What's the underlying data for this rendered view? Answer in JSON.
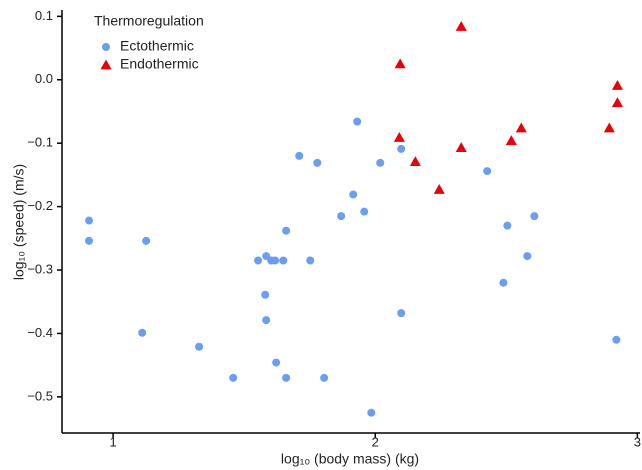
{
  "chart_data": {
    "type": "scatter",
    "xlabel": "log₁₀ (body mass) (kg)",
    "ylabel": "log₁₀ (speed)  (m/s)",
    "legend_title": "Thermoregulation",
    "legend": "top-left",
    "grid": false,
    "xlim": [
      0.805,
      3.01
    ],
    "ylim": [
      -0.557,
      0.11
    ],
    "xticks": [
      1,
      2,
      3
    ],
    "yticks": [
      {
        "value": 0.1,
        "label": "0.1"
      },
      {
        "value": 0,
        "label": "0.0"
      },
      {
        "value": -0.1,
        "label": "−0.1"
      },
      {
        "value": -0.2,
        "label": "−0.2"
      },
      {
        "value": -0.3,
        "label": "−0.3"
      },
      {
        "value": -0.4,
        "label": "−0.4"
      },
      {
        "value": -0.5,
        "label": "−0.5"
      }
    ],
    "series": [
      {
        "name": "Ectothermic",
        "color": "#6b9ef0",
        "marker": "circle",
        "x": [
          0.908,
          0.908,
          1.126,
          1.111,
          1.328,
          1.458,
          1.553,
          1.584,
          1.603,
          1.618,
          1.649,
          1.66,
          1.58,
          1.584,
          1.622,
          1.66,
          1.71,
          1.752,
          1.779,
          1.805,
          1.87,
          1.916,
          1.931,
          1.958,
          1.985,
          2.019,
          2.099,
          2.099,
          2.427,
          2.504,
          2.489,
          2.58,
          2.607,
          2.92
        ],
        "values": [
          -0.222,
          -0.254,
          -0.254,
          -0.399,
          -0.421,
          -0.47,
          -0.285,
          -0.278,
          -0.285,
          -0.285,
          -0.285,
          -0.238,
          -0.339,
          -0.379,
          -0.446,
          -0.47,
          -0.12,
          -0.285,
          -0.131,
          -0.47,
          -0.215,
          -0.181,
          -0.066,
          -0.208,
          -0.525,
          -0.131,
          -0.109,
          -0.368,
          -0.144,
          -0.23,
          -0.32,
          -0.278,
          -0.215,
          -0.41
        ]
      },
      {
        "name": "Endothermic",
        "color": "#e8000b",
        "marker": "triangle",
        "x": [
          2.095,
          2.328,
          2.092,
          2.153,
          2.328,
          2.244,
          2.519,
          2.557,
          2.893,
          2.924,
          2.924
        ],
        "values": [
          0.025,
          0.084,
          -0.091,
          -0.129,
          -0.107,
          -0.173,
          -0.096,
          -0.076,
          -0.076,
          -0.009,
          -0.036
        ]
      }
    ]
  }
}
